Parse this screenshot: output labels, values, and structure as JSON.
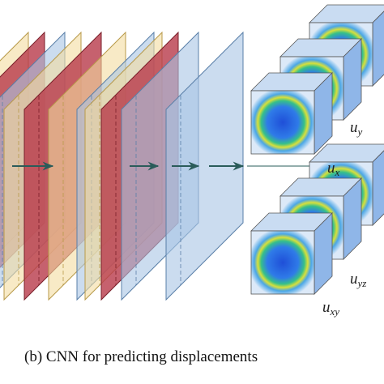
{
  "caption": "(b)  CNN for predicting displacements",
  "labels": [
    {
      "base": "u",
      "sub": "y"
    },
    {
      "base": "u",
      "sub": "x"
    },
    {
      "base": "u",
      "sub": "yz"
    },
    {
      "base": "u",
      "sub": "xy"
    }
  ]
}
